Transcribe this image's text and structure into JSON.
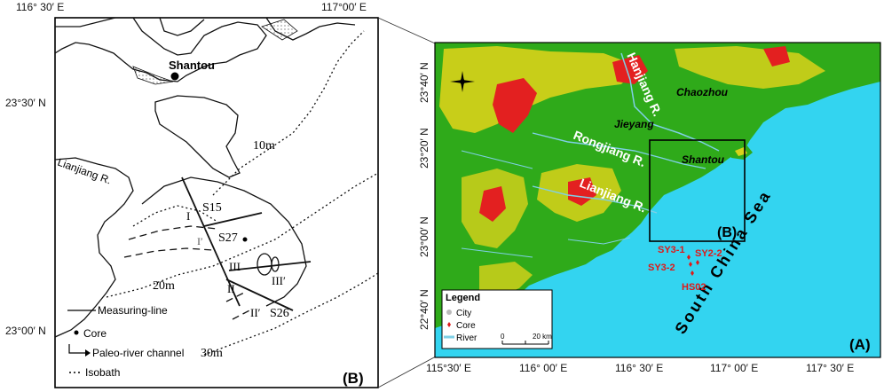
{
  "panel_b": {
    "lon_labels": [
      "116° 30′ E",
      "117°00′ E"
    ],
    "lat_labels": [
      "23°30′ N",
      "23°00′ N"
    ],
    "place_labels": {
      "shantou": "Shantou",
      "lianjiang_river": "Lianjiang R.",
      "isobath_10m": "10m",
      "isobath_20m": "20m",
      "isobath_30m": "30m"
    },
    "cores": [
      "S15",
      "S27",
      "S26"
    ],
    "lines": {
      "line_1": "I",
      "line_1_prime": "I′",
      "line_2": "II",
      "line_2_prime": "II′",
      "line_3": "III",
      "line_3_prime": "III′"
    },
    "legend": {
      "measuring_line": "Measuring-line",
      "core": "Core",
      "paleo_channel": "Paleo-river channel",
      "isobath": "Isobath"
    },
    "panel_label": "(B)"
  },
  "panel_a": {
    "lat_labels": [
      "23°40′ N",
      "23°20′ N",
      "23°00′ N",
      "22°40′ N"
    ],
    "lon_labels": [
      "115°30′ E",
      "116° 00′ E",
      "116° 30′ E",
      "117° 00′ E",
      "117° 30′ E"
    ],
    "cities": [
      "Chaozhou",
      "Jieyang",
      "Shantou"
    ],
    "rivers": [
      "Hanjiang R.",
      "Rongjiang R.",
      "Lianjiang R."
    ],
    "sea": "South China Sea",
    "cores": [
      "SY3-1",
      "SY2-2",
      "SY3-2",
      "HS02"
    ],
    "inset_label": "(B)",
    "panel_label": "(A)",
    "legend": {
      "title": "Legend",
      "city": "City",
      "core": "Core",
      "river": "River",
      "scale_start": "0",
      "scale_end": "20 km"
    },
    "colors": {
      "sea": "#33d4f0",
      "lowland": "#2faa1a",
      "hill": "#d9d21a",
      "mountain": "#e32020",
      "river": "#7fd0e6",
      "core_marker": "#e01818",
      "city_marker": "#bbbbbb"
    }
  }
}
